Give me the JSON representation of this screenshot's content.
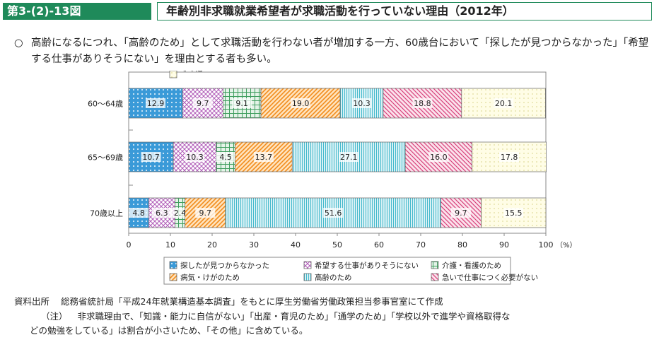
{
  "header": {
    "figure_label": "第3-(2)-13図",
    "title": "年齢別非求職就業希望者が求職活動を行っていない理由（2012年）"
  },
  "summary": {
    "marker": "○",
    "text": "高齢になるにつれ、「高齢のため」として求職活動を行わない者が増加する一方、60歳台において「探したが見つからなかった」「希望する仕事がありそうにない」を理由とする者も多い。"
  },
  "chart_data": {
    "type": "bar",
    "orientation": "horizontal",
    "stacked": true,
    "categories": [
      "60～64歳",
      "65～69歳",
      "70歳以上"
    ],
    "series": [
      {
        "name": "探したが見つからなかった",
        "color": "#3a9ad8",
        "pattern": "dots",
        "values": [
          12.9,
          10.7,
          4.8
        ]
      },
      {
        "name": "希望する仕事がありそうにない",
        "color": "#b05cb8",
        "pattern": "crosshatch",
        "values": [
          9.7,
          10.3,
          6.3
        ]
      },
      {
        "name": "介護・看護のため",
        "color": "#3f9e5e",
        "pattern": "grid",
        "values": [
          9.1,
          4.5,
          2.4
        ]
      },
      {
        "name": "病気・けがのため",
        "color": "#f28c1c",
        "pattern": "diag",
        "values": [
          19.0,
          13.7,
          9.7
        ]
      },
      {
        "name": "高齢のため",
        "color": "#35b3c8",
        "pattern": "vlines",
        "values": [
          10.3,
          27.1,
          51.6
        ]
      },
      {
        "name": "急いで仕事につく必要がない",
        "color": "#d8417a",
        "pattern": "diag2",
        "values": [
          18.8,
          16.0,
          9.7
        ]
      },
      {
        "name": "その他",
        "color": "#e0dc9c",
        "pattern": "dots-light",
        "values": [
          20.1,
          17.8,
          15.5
        ]
      }
    ],
    "xlim": [
      0,
      100
    ],
    "xticks": [
      0,
      10,
      20,
      30,
      40,
      50,
      60,
      70,
      80,
      90,
      100
    ],
    "xunit": "（%）",
    "legend_placement": "bottom"
  },
  "footnotes": {
    "source_label": "資料出所",
    "source_text": "総務省統計局「平成24年就業構造基本調査」をもとに厚生労働省労働政策担当参事官室にて作成",
    "note_label": "（注）",
    "note_line1": "非求職理由で、「知識・能力に自信がない」「出産・育児のため」「通学のため」「学校以外で進学や資格取得な",
    "note_line2": "どの勉強をしている」は割合が小さいため、「その他」に含めている。"
  }
}
